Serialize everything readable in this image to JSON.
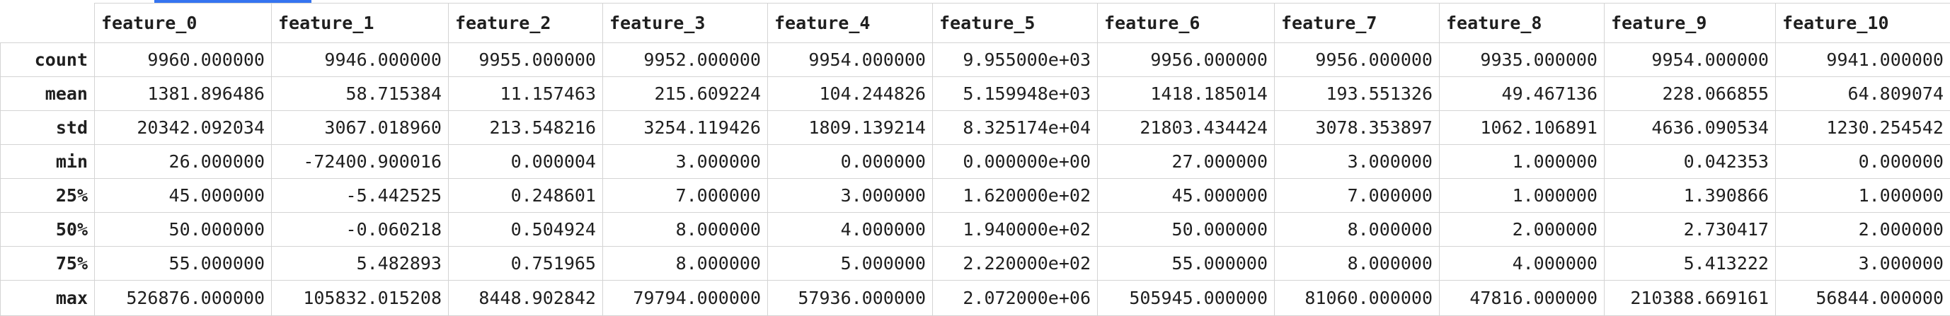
{
  "header": {
    "index_label": "",
    "columns": [
      "feature_0",
      "feature_1",
      "feature_2",
      "feature_3",
      "feature_4",
      "feature_5",
      "feature_6",
      "feature_7",
      "feature_8",
      "feature_9",
      "feature_10"
    ]
  },
  "rows": [
    {
      "label": "count",
      "cells": [
        "9960.000000",
        "9946.000000",
        "9955.000000",
        "9952.000000",
        "9954.000000",
        "9.955000e+03",
        "9956.000000",
        "9956.000000",
        "9935.000000",
        "9954.000000",
        "9941.000000"
      ]
    },
    {
      "label": "mean",
      "cells": [
        "1381.896486",
        "58.715384",
        "11.157463",
        "215.609224",
        "104.244826",
        "5.159948e+03",
        "1418.185014",
        "193.551326",
        "49.467136",
        "228.066855",
        "64.809074"
      ]
    },
    {
      "label": "std",
      "cells": [
        "20342.092034",
        "3067.018960",
        "213.548216",
        "3254.119426",
        "1809.139214",
        "8.325174e+04",
        "21803.434424",
        "3078.353897",
        "1062.106891",
        "4636.090534",
        "1230.254542"
      ]
    },
    {
      "label": "min",
      "cells": [
        "26.000000",
        "-72400.900016",
        "0.000004",
        "3.000000",
        "0.000000",
        "0.000000e+00",
        "27.000000",
        "3.000000",
        "1.000000",
        "0.042353",
        "0.000000"
      ]
    },
    {
      "label": "25%",
      "cells": [
        "45.000000",
        "-5.442525",
        "0.248601",
        "7.000000",
        "3.000000",
        "1.620000e+02",
        "45.000000",
        "7.000000",
        "1.000000",
        "1.390866",
        "1.000000"
      ]
    },
    {
      "label": "50%",
      "cells": [
        "50.000000",
        "-0.060218",
        "0.504924",
        "8.000000",
        "4.000000",
        "1.940000e+02",
        "50.000000",
        "8.000000",
        "2.000000",
        "2.730417",
        "2.000000"
      ]
    },
    {
      "label": "75%",
      "cells": [
        "55.000000",
        "5.482893",
        "0.751965",
        "8.000000",
        "5.000000",
        "2.220000e+02",
        "55.000000",
        "8.000000",
        "4.000000",
        "5.413222",
        "3.000000"
      ]
    },
    {
      "label": "max",
      "cells": [
        "526876.000000",
        "105832.015208",
        "8448.902842",
        "79794.000000",
        "57936.000000",
        "2.072000e+06",
        "505945.000000",
        "81060.000000",
        "47816.000000",
        "210388.669161",
        "56844.000000"
      ]
    }
  ],
  "colors": {
    "accent": "#3574f0",
    "grid": "#d4d4d4",
    "text": "#1f1f1f"
  }
}
